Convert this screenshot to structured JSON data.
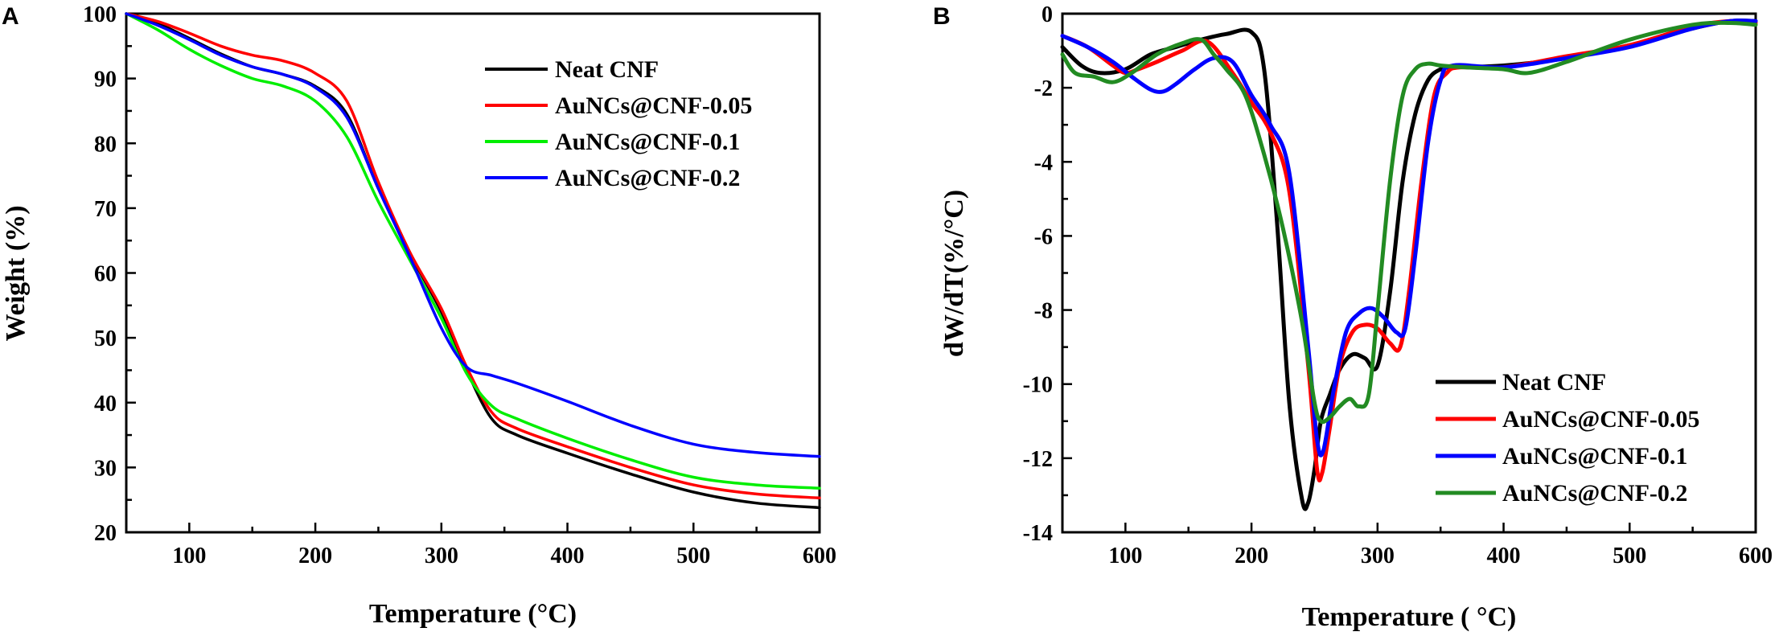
{
  "chart_data": [
    {
      "panel_label": "A",
      "type": "line",
      "xlabel": "Temperature (°C)",
      "ylabel": "Weight (%)",
      "xlim": [
        50,
        600
      ],
      "ylim": [
        20,
        100
      ],
      "xticks": [
        100,
        200,
        300,
        400,
        500,
        600
      ],
      "yticks": [
        20,
        30,
        40,
        50,
        60,
        70,
        80,
        90,
        100
      ],
      "legend_position": "top-right",
      "series": [
        {
          "name": "Neat CNF",
          "color": "#000000",
          "x": [
            50,
            75,
            100,
            125,
            150,
            175,
            200,
            225,
            250,
            275,
            300,
            320,
            340,
            360,
            400,
            450,
            500,
            550,
            600
          ],
          "y": [
            100,
            98.5,
            96.2,
            93.8,
            91.8,
            90.6,
            88.8,
            84.5,
            73,
            63,
            54,
            45,
            37.5,
            35,
            32.2,
            29,
            26.2,
            24.5,
            23.8
          ]
        },
        {
          "name": "AuNCs@CNF-0.05",
          "color": "#ff0000",
          "x": [
            50,
            75,
            100,
            125,
            150,
            175,
            200,
            225,
            250,
            275,
            300,
            320,
            340,
            360,
            400,
            450,
            500,
            550,
            600
          ],
          "y": [
            100,
            98.8,
            97,
            95,
            93.6,
            92.7,
            90.8,
            86.5,
            74,
            63.2,
            54.5,
            45.5,
            38.5,
            36,
            33.2,
            30,
            27.3,
            25.9,
            25.3
          ]
        },
        {
          "name": "AuNCs@CNF-0.1",
          "color": "#00ee00",
          "x": [
            50,
            75,
            100,
            125,
            150,
            175,
            200,
            225,
            250,
            275,
            300,
            320,
            340,
            360,
            400,
            450,
            500,
            550,
            600
          ],
          "y": [
            100,
            97.5,
            94.5,
            92,
            90,
            88.8,
            86.5,
            81,
            71,
            62,
            53,
            44.5,
            39.5,
            37.5,
            34.5,
            31.2,
            28.5,
            27.3,
            26.8
          ]
        },
        {
          "name": "AuNCs@CNF-0.2",
          "color": "#0000ff",
          "x": [
            50,
            75,
            100,
            125,
            150,
            175,
            200,
            225,
            250,
            275,
            300,
            320,
            340,
            360,
            400,
            450,
            500,
            550,
            600
          ],
          "y": [
            100,
            98.2,
            96,
            93.6,
            91.8,
            90.6,
            88.6,
            84,
            73,
            62.5,
            51.5,
            45.5,
            44.2,
            43,
            40.2,
            36.5,
            33.6,
            32.3,
            31.7
          ]
        }
      ]
    },
    {
      "panel_label": "B",
      "type": "line",
      "xlabel": "Temperature ( °C)",
      "ylabel": "dW/dT(%/°C)",
      "xlim": [
        50,
        600
      ],
      "ylim": [
        -14,
        0
      ],
      "xticks": [
        100,
        200,
        300,
        400,
        500,
        600
      ],
      "yticks": [
        0,
        -2,
        -4,
        -6,
        -8,
        -10,
        -12,
        -14
      ],
      "legend_position": "bottom-right",
      "series": [
        {
          "name": "Neat CNF",
          "color": "#000000",
          "x": [
            50,
            65,
            80,
            100,
            120,
            140,
            160,
            180,
            200,
            210,
            220,
            230,
            240,
            245,
            250,
            255,
            262,
            270,
            280,
            290,
            300,
            310,
            320,
            330,
            340,
            350,
            360,
            400,
            450,
            500,
            550,
            580,
            600
          ],
          "y": [
            -0.9,
            -1.4,
            -1.6,
            -1.5,
            -1.1,
            -0.9,
            -0.7,
            -0.55,
            -0.5,
            -1.5,
            -5.5,
            -10.5,
            -13.1,
            -13.2,
            -12.3,
            -11,
            -10.3,
            -9.6,
            -9.2,
            -9.3,
            -9.5,
            -7.5,
            -4.5,
            -2.7,
            -1.8,
            -1.5,
            -1.45,
            -1.4,
            -1.2,
            -0.85,
            -0.4,
            -0.2,
            -0.2
          ]
        },
        {
          "name": "AuNCs@CNF-0.05",
          "color": "#ff0000",
          "x": [
            50,
            70,
            90,
            100,
            110,
            125,
            145,
            165,
            185,
            200,
            215,
            230,
            245,
            252,
            256,
            262,
            270,
            280,
            290,
            300,
            310,
            318,
            325,
            335,
            345,
            355,
            365,
            400,
            450,
            500,
            550,
            580,
            600
          ],
          "y": [
            -0.6,
            -0.9,
            -1.4,
            -1.6,
            -1.5,
            -1.3,
            -1.0,
            -0.75,
            -1.6,
            -2.4,
            -3.2,
            -4.8,
            -9.5,
            -12.3,
            -12.4,
            -11.2,
            -9.5,
            -8.6,
            -8.4,
            -8.5,
            -8.9,
            -9.0,
            -7.5,
            -4.5,
            -2.2,
            -1.6,
            -1.45,
            -1.45,
            -1.15,
            -0.85,
            -0.35,
            -0.2,
            -0.25
          ]
        },
        {
          "name": "AuNCs@CNF-0.1",
          "color": "#0000ff",
          "x": [
            50,
            70,
            90,
            105,
            120,
            130,
            140,
            155,
            170,
            185,
            200,
            215,
            230,
            245,
            252,
            257,
            265,
            275,
            285,
            295,
            305,
            315,
            322,
            330,
            340,
            350,
            360,
            400,
            450,
            500,
            550,
            580,
            600
          ],
          "y": [
            -0.6,
            -0.9,
            -1.3,
            -1.7,
            -2.05,
            -2.1,
            -1.9,
            -1.5,
            -1.2,
            -1.3,
            -2.2,
            -3.0,
            -4.3,
            -9.0,
            -11.5,
            -11.8,
            -10.2,
            -8.6,
            -8.1,
            -7.95,
            -8.2,
            -8.6,
            -8.5,
            -6.5,
            -3.5,
            -1.8,
            -1.4,
            -1.45,
            -1.2,
            -0.9,
            -0.4,
            -0.2,
            -0.2
          ]
        },
        {
          "name": "AuNCs@CNF-0.2",
          "color": "#228b22",
          "x": [
            50,
            60,
            75,
            90,
            105,
            125,
            145,
            160,
            170,
            180,
            195,
            210,
            225,
            240,
            250,
            255,
            262,
            270,
            278,
            285,
            293,
            300,
            310,
            320,
            330,
            340,
            350,
            370,
            400,
            420,
            450,
            500,
            550,
            580,
            600
          ],
          "y": [
            -1.1,
            -1.6,
            -1.7,
            -1.85,
            -1.6,
            -1.1,
            -0.8,
            -0.7,
            -1.1,
            -1.5,
            -2.2,
            -3.8,
            -5.8,
            -8.3,
            -10.5,
            -11.0,
            -10.9,
            -10.6,
            -10.4,
            -10.6,
            -10.3,
            -8.0,
            -4.5,
            -2.2,
            -1.5,
            -1.35,
            -1.4,
            -1.45,
            -1.5,
            -1.6,
            -1.3,
            -0.7,
            -0.3,
            -0.25,
            -0.3
          ]
        }
      ]
    }
  ]
}
